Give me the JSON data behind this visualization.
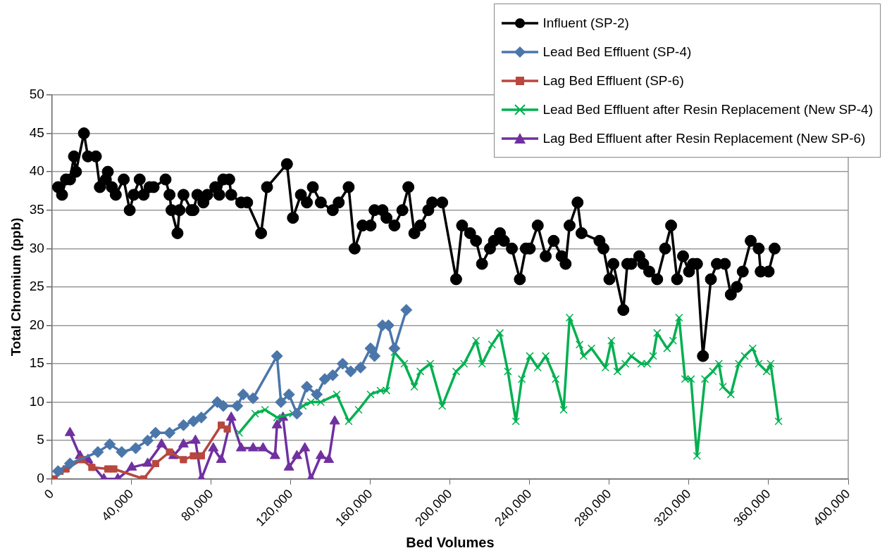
{
  "chart_data": {
    "type": "line",
    "xlabel": "Bed Volumes",
    "ylabel": "Total Chromium (ppb)",
    "xlim": [
      0,
      400000
    ],
    "ylim": [
      0,
      50
    ],
    "xticks": [
      0,
      {
        "value": 40000,
        "label": "40,000"
      },
      {
        "value": 80000,
        "label": "80,000"
      },
      {
        "value": 120000,
        "label": "120,000"
      },
      {
        "value": 160000,
        "label": "160,000"
      },
      {
        "value": 200000,
        "label": "200,000"
      },
      {
        "value": 240000,
        "label": "240,000"
      },
      {
        "value": 280000,
        "label": "280,000"
      },
      {
        "value": 320000,
        "label": "320,000"
      },
      {
        "value": 360000,
        "label": "360,000"
      },
      {
        "value": 400000,
        "label": "400,000"
      }
    ],
    "yticks": [
      0,
      5,
      10,
      15,
      20,
      25,
      30,
      35,
      40,
      45,
      50
    ],
    "grid": "y",
    "legend": "top right",
    "line_style": "solid",
    "series": [
      {
        "name": "Influent (SP-2)",
        "color": "#000000",
        "marker": "circle",
        "x": [
          3000,
          5000,
          7000,
          9000,
          11000,
          12000,
          16000,
          18000,
          22000,
          24000,
          27000,
          28000,
          30000,
          32000,
          36000,
          39000,
          41000,
          44000,
          46000,
          49000,
          51000,
          57000,
          59000,
          60000,
          63000,
          64000,
          66000,
          70000,
          71000,
          73000,
          76000,
          78000,
          82000,
          84000,
          86000,
          89000,
          90000,
          95000,
          98000,
          105000,
          108000,
          118000,
          121000,
          125000,
          128000,
          131000,
          135000,
          141000,
          144000,
          149000,
          152000,
          156000,
          160000,
          162000,
          166000,
          168000,
          172000,
          176000,
          179000,
          182000,
          185000,
          189000,
          191000,
          196000,
          203000,
          206000,
          210000,
          213000,
          216000,
          220000,
          222000,
          225000,
          227000,
          231000,
          235000,
          238000,
          240000,
          244000,
          248000,
          252000,
          256000,
          258000,
          260000,
          264000,
          266000,
          275000,
          277000,
          280000,
          282000,
          287000,
          289000,
          291000,
          295000,
          297000,
          300000,
          304000,
          308000,
          311000,
          314000,
          317000,
          320000,
          322000,
          324000,
          327000,
          331000,
          334000,
          338000,
          341000,
          344000,
          347000,
          351000,
          355000,
          356000,
          360000,
          363000
        ],
        "values": [
          38,
          37,
          39,
          39,
          42,
          40,
          45,
          42,
          42,
          38,
          39,
          40,
          38,
          37,
          39,
          35,
          37,
          39,
          37,
          38,
          38,
          39,
          37,
          35,
          32,
          35,
          37,
          35,
          35,
          37,
          36,
          37,
          38,
          37,
          39,
          39,
          37,
          36,
          36,
          32,
          38,
          41,
          34,
          37,
          36,
          38,
          36,
          35,
          36,
          38,
          30,
          33,
          33,
          35,
          35,
          34,
          33,
          35,
          38,
          32,
          33,
          35,
          36,
          36,
          26,
          33,
          32,
          31,
          28,
          30,
          31,
          32,
          31,
          30,
          26,
          30,
          30,
          33,
          29,
          31,
          29,
          28,
          33,
          36,
          32,
          31,
          30,
          26,
          28,
          22,
          28,
          28,
          29,
          28,
          27,
          26,
          30,
          33,
          26,
          29,
          27,
          28,
          28,
          16,
          26,
          28,
          28,
          24,
          25,
          27,
          31,
          30,
          27,
          27,
          30
        ]
      },
      {
        "name": "Lead Bed Effluent (SP-4)",
        "color": "#4a76aa",
        "marker": "diamond",
        "x": [
          3000,
          9000,
          23000,
          29000,
          35000,
          42000,
          48000,
          52000,
          59000,
          66000,
          71000,
          75000,
          83000,
          86000,
          93000,
          96000,
          101000,
          113000,
          115000,
          119000,
          123000,
          128000,
          133000,
          137000,
          141000,
          146000,
          150000,
          155000,
          160000,
          162000,
          166000,
          169000,
          172000,
          178000
        ],
        "values": [
          1,
          2,
          3.5,
          4.5,
          3.5,
          4,
          5,
          6,
          6,
          7,
          7.5,
          8,
          10,
          9.5,
          9.5,
          11,
          10.5,
          16,
          10,
          11,
          8.5,
          12,
          11,
          13,
          13.5,
          15,
          14,
          14.5,
          17,
          16,
          20,
          20,
          17,
          22
        ]
      },
      {
        "name": "Lag Bed Effluent (SP-6)",
        "color": "#b7473f",
        "marker": "square",
        "x": [
          1000,
          4000,
          7000,
          15000,
          20000,
          28000,
          31000,
          46000,
          52000,
          59000,
          66000,
          71000,
          75000,
          85000,
          88000
        ],
        "values": [
          0,
          1,
          1.3,
          2.5,
          1.5,
          1.3,
          1.3,
          0,
          2,
          3.5,
          2.5,
          3,
          3,
          7,
          6.5
        ]
      },
      {
        "name": "Lead Bed Effluent after Resin Replacement (New SP-4)",
        "color": "#00b050",
        "marker": "cross",
        "x": [
          94000,
          102000,
          107000,
          113000,
          121000,
          126000,
          130000,
          135000,
          143000,
          149000,
          154000,
          160000,
          165000,
          168000,
          172000,
          177000,
          182000,
          185000,
          190000,
          196000,
          203000,
          207000,
          213000,
          216000,
          221000,
          225000,
          229000,
          233000,
          236000,
          240000,
          244000,
          248000,
          253000,
          257000,
          260000,
          265000,
          267000,
          271000,
          278000,
          281000,
          284000,
          288000,
          291000,
          296000,
          299000,
          302000,
          304000,
          309000,
          312000,
          315000,
          318000,
          321000,
          324000,
          328000,
          332000,
          335000,
          337000,
          341000,
          345000,
          348000,
          352000,
          355000,
          359000,
          361000,
          365000
        ],
        "values": [
          6,
          8.5,
          9,
          8,
          8.5,
          9.5,
          10,
          10,
          11,
          7.5,
          9,
          11,
          11.5,
          11.5,
          16.5,
          15,
          12,
          14,
          15,
          9.5,
          14,
          15,
          18,
          15,
          17.5,
          19,
          14,
          7.5,
          13,
          16,
          14.5,
          16,
          13,
          9,
          21,
          17.5,
          16,
          17,
          14.5,
          18,
          14,
          15,
          16,
          15,
          15,
          16,
          19,
          17,
          18,
          21,
          13,
          13,
          3,
          13,
          14,
          15,
          12,
          11,
          15,
          16,
          17,
          15,
          14,
          15,
          7.5
        ]
      },
      {
        "name": "Lag Bed Effluent after Resin Replacement (New SP-6)",
        "color": "#7030a0",
        "marker": "triangle",
        "x": [
          9000,
          14000,
          18000,
          26000,
          33000,
          40000,
          48000,
          55000,
          61000,
          66000,
          72000,
          75000,
          81000,
          85000,
          90000,
          95000,
          101000,
          106000,
          112000,
          113000,
          116000,
          119000,
          123000,
          127000,
          130000,
          135000,
          139000,
          142000
        ],
        "values": [
          6,
          3,
          2.5,
          0,
          0,
          1.5,
          2,
          4.5,
          3,
          4.5,
          5,
          0,
          4,
          2.5,
          8,
          4,
          4,
          4,
          3,
          7,
          8,
          1.5,
          3,
          4,
          0,
          3,
          2.5,
          7.5
        ]
      }
    ]
  }
}
